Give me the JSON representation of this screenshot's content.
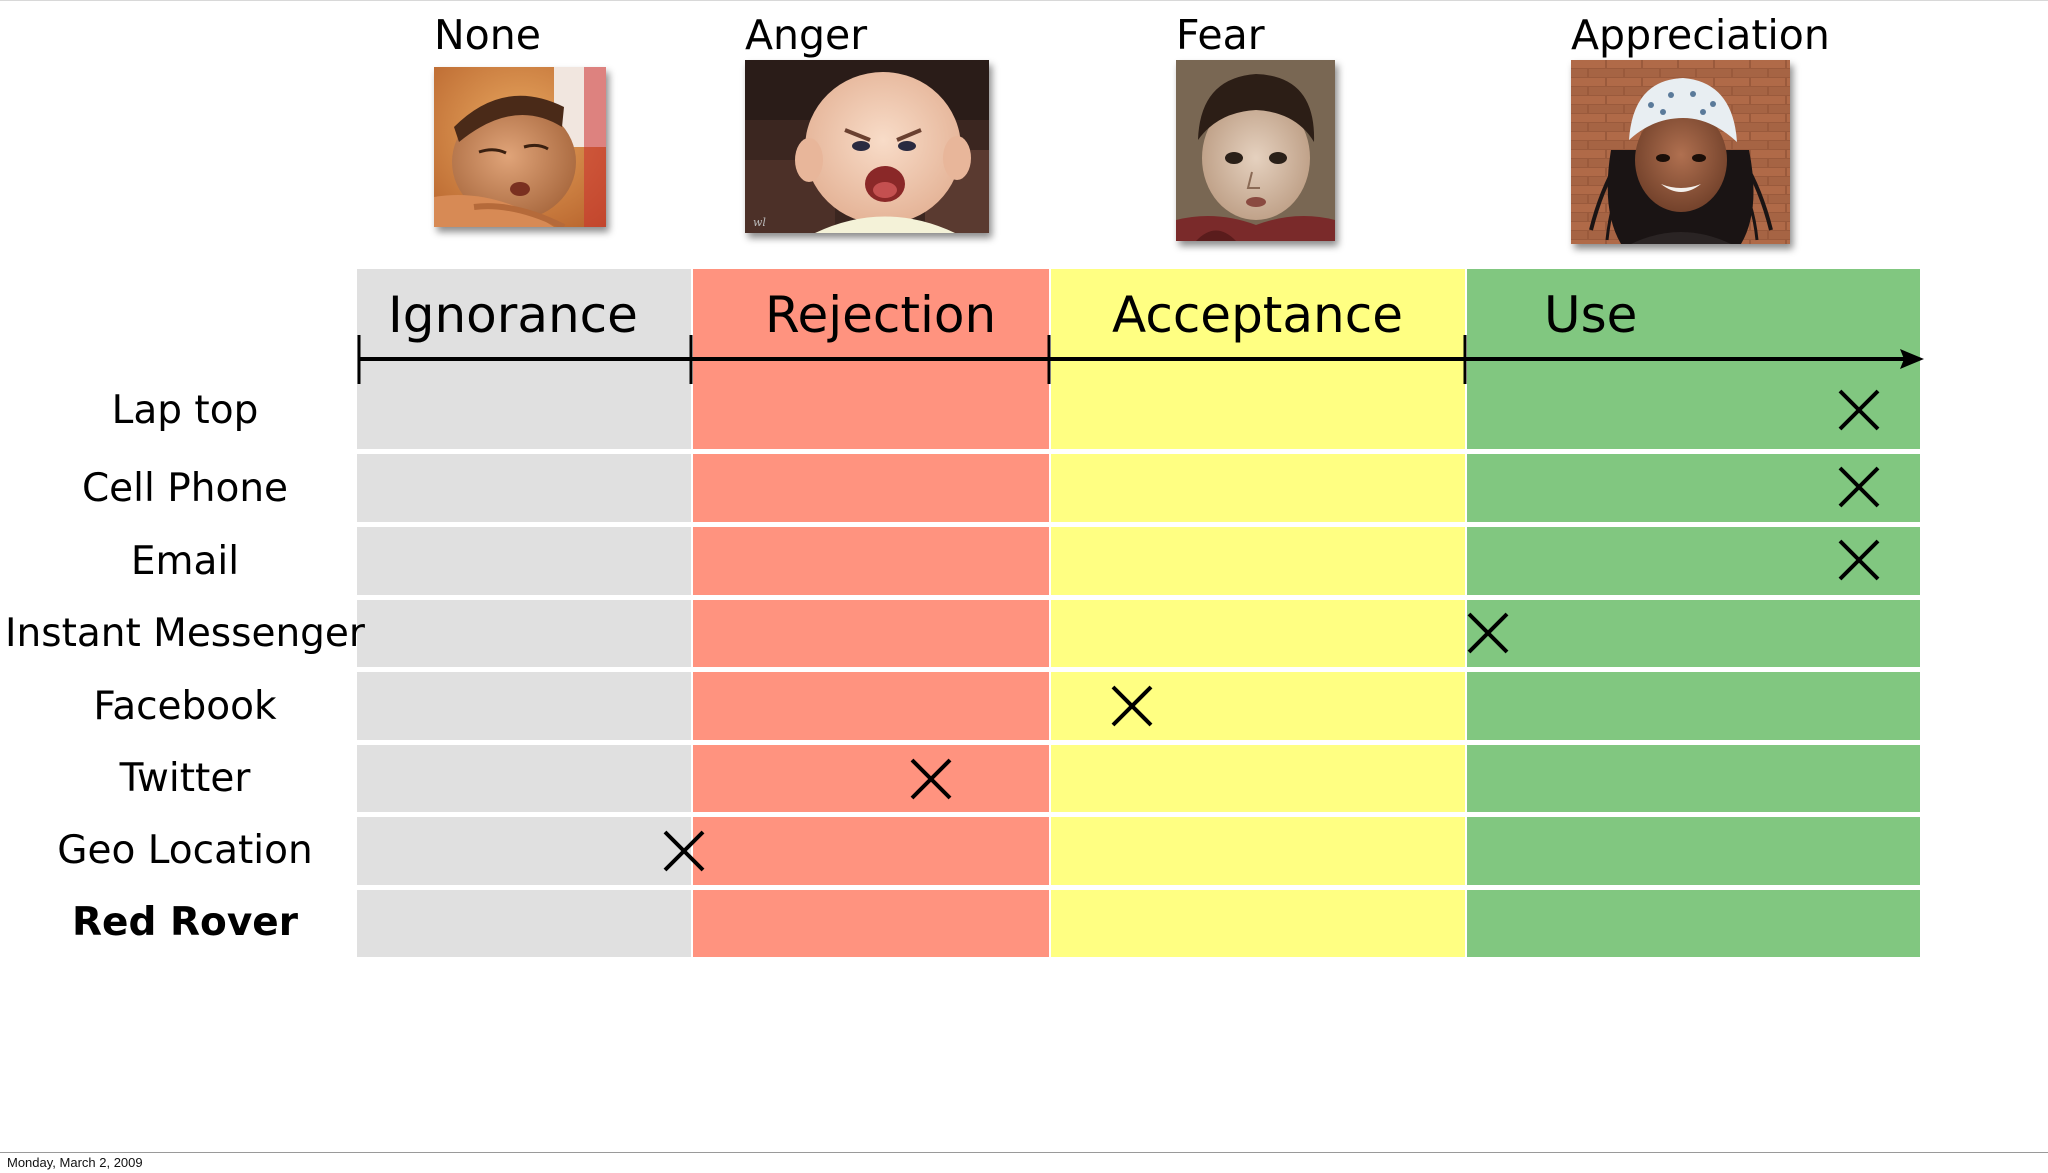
{
  "emotions": [
    {
      "label": "None",
      "photo": "sleeping-child-photo"
    },
    {
      "label": "Anger",
      "photo": "angry-baby-photo"
    },
    {
      "label": "Fear",
      "photo": "frightened-boy-photo"
    },
    {
      "label": "Appreciation",
      "photo": "smiling-girl-photo"
    }
  ],
  "stages": [
    {
      "label": "Ignorance",
      "color": "#e0e0e0"
    },
    {
      "label": "Rejection",
      "color": "#ff937f"
    },
    {
      "label": "Acceptance",
      "color": "#ffff82"
    },
    {
      "label": "Use",
      "color": "#81c780"
    }
  ],
  "rows": [
    {
      "label": "Lap top",
      "bold": false,
      "mark": "X",
      "position": 0.97
    },
    {
      "label": "Cell Phone",
      "bold": false,
      "mark": "X",
      "position": 0.97
    },
    {
      "label": "Email",
      "bold": false,
      "mark": "X",
      "position": 0.97
    },
    {
      "label": "Instant Messenger",
      "bold": false,
      "mark": "X",
      "position": 0.73
    },
    {
      "label": "Facebook",
      "bold": false,
      "mark": "X",
      "position": 0.5
    },
    {
      "label": "Twitter",
      "bold": false,
      "mark": "X",
      "position": 0.37
    },
    {
      "label": "Geo Location",
      "bold": false,
      "mark": "X",
      "position": 0.21
    },
    {
      "label": "Red Rover",
      "bold": true,
      "mark": "",
      "position": null
    }
  ],
  "footer": {
    "date": "Monday, March 2, 2009"
  },
  "colors": {
    "axis": "#000000",
    "grid": "#ffffff"
  }
}
